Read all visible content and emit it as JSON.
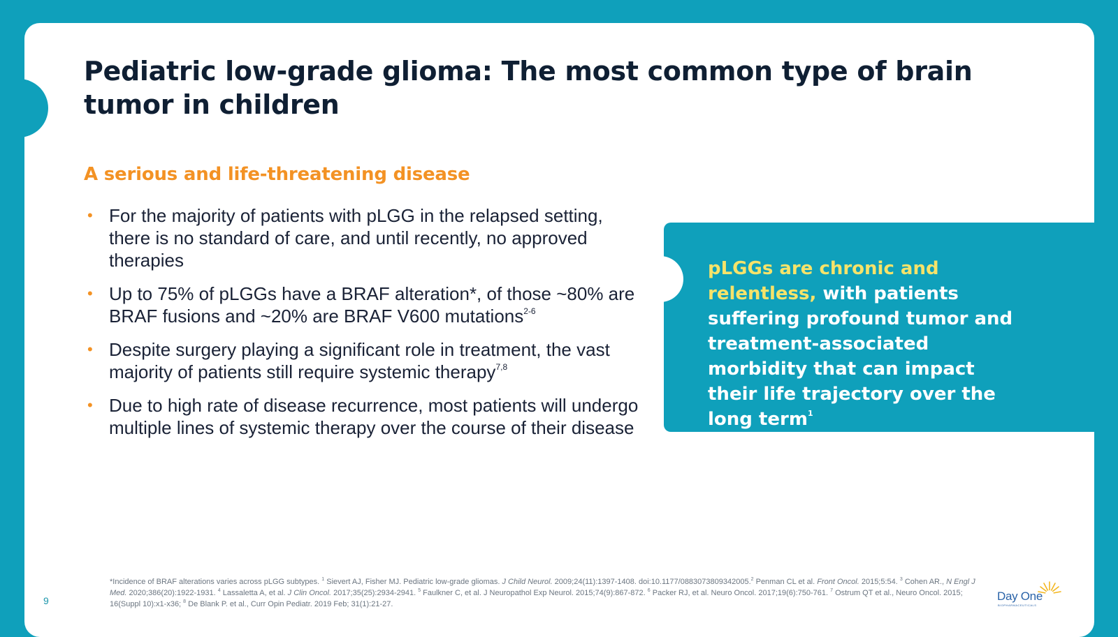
{
  "title": "Pediatric low-grade glioma: The most common type of brain tumor in children",
  "subtitle": "A serious and life-threatening disease",
  "bullet_marker": "•",
  "bullets": [
    {
      "text": "For the majority of patients with pLGG in the relapsed setting, there is no standard of care, and until recently, no approved therapies",
      "sup": ""
    },
    {
      "text": "Up to 75% of pLGGs have a BRAF alteration*, of those ~80% are BRAF fusions and ~20% are BRAF V600 mutations",
      "sup": "2-6"
    },
    {
      "text": "Despite surgery playing a significant role in treatment, the vast majority of patients still require systemic therapy",
      "sup": "7,8"
    },
    {
      "text": "Due to high rate of disease recurrence, most patients will undergo multiple lines of systemic therapy over the course of their disease",
      "sup": ""
    }
  ],
  "callout": {
    "highlight": "pLGGs are chronic and relentless,",
    "text": " with patients suffering profound tumor and treatment-associated morbidity that can impact their life trajectory over the long term",
    "sup": "1"
  },
  "footnote": {
    "f0": "*Incidence of BRAF alterations varies across pLGG subtypes. ",
    "s1": "1",
    "f1": " Sievert AJ, Fisher MJ. Pediatric low-grade gliomas. ",
    "f1i": "J Child Neurol.",
    "f1b": " 2009;24(11):1397-1408. doi:10.1177/0883073809342005.",
    "s2": "2",
    "f2": " Penman CL et al. ",
    "f2i": "Front Oncol.",
    "f2b": " 2015;5:54. ",
    "s3": "3",
    "f3": " Cohen AR., ",
    "f3i": "N Engl J Med.",
    "f3b": " 2020;386(20):1922-1931.  ",
    "s4": "4",
    "f4": " Lassaletta A, et al. ",
    "f4i": "J Clin Oncol.",
    "f4b": " 2017;35(25):2934-2941. ",
    "s5": "5",
    "f5": " Faulkner C, et al. J Neuropathol Exp Neurol. 2015;74(9):867-872. ",
    "s6": "6",
    "f6": " Packer RJ, et al. Neuro Oncol. 2017;19(6):750-761. ",
    "s7": "7",
    "f7": " Ostrum QT et al., Neuro Oncol. 2015; 16(Suppl 10):x1-x36; ",
    "s8": "8",
    "f8": " De Blank P. et al., Curr Opin Pediatr. 2019 Feb; 31(1):21-27."
  },
  "page_number": "9",
  "logo": {
    "name": "Day One",
    "subtext": "BIOPHARMACEUTICALS"
  },
  "colors": {
    "teal": "#0fa0bb",
    "orange": "#f39224",
    "highlight_yellow": "#f6e36a",
    "title_navy": "#0f1f33"
  }
}
